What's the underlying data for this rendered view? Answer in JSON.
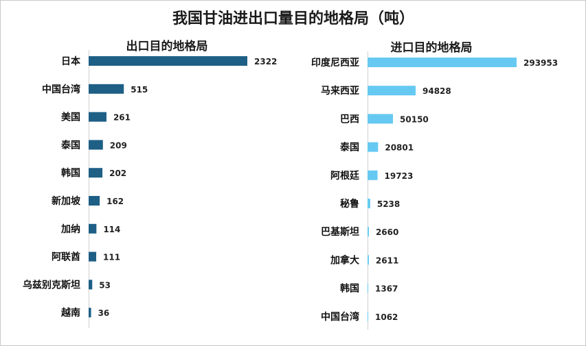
{
  "title": "我国甘油进出口量目的地格局（吨）",
  "chart_data": [
    {
      "type": "bar",
      "orientation": "horizontal",
      "title": "出口目的地格局",
      "categories": [
        "日本",
        "中国台湾",
        "美国",
        "泰国",
        "韩国",
        "新加坡",
        "加纳",
        "阿联酋",
        "乌兹别克斯坦",
        "越南"
      ],
      "values": [
        2322,
        515,
        261,
        209,
        202,
        162,
        114,
        111,
        53,
        36
      ],
      "color": "#1e5f86",
      "xlim": [
        0,
        2322
      ],
      "grid": false,
      "xlabel": "",
      "ylabel": ""
    },
    {
      "type": "bar",
      "orientation": "horizontal",
      "title": "进口目的地格局",
      "categories": [
        "印度尼西亚",
        "马来西亚",
        "巴西",
        "泰国",
        "阿根廷",
        "秘鲁",
        "巴基斯坦",
        "加拿大",
        "韩国",
        "中国台湾"
      ],
      "values": [
        293953,
        94828,
        50150,
        20801,
        19723,
        5238,
        2660,
        2611,
        1367,
        1062
      ],
      "color": "#66c9f2",
      "xlim": [
        0,
        293953
      ],
      "grid": false,
      "xlabel": "",
      "ylabel": ""
    }
  ]
}
